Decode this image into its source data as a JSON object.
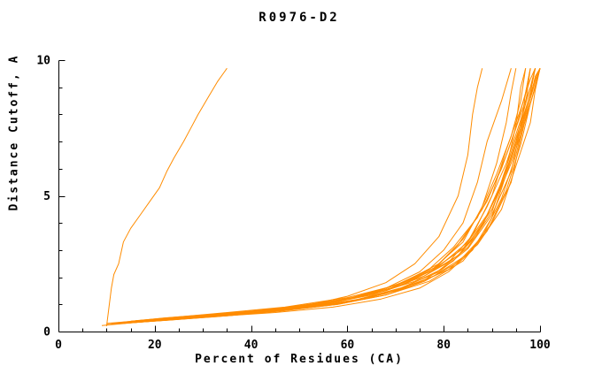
{
  "chart_data": {
    "type": "line",
    "title": "R0976-D2",
    "xlabel": "Percent of Residues (CA)",
    "ylabel": "Distance Cutoff, A",
    "xlim": [
      0,
      100
    ],
    "ylim": [
      0,
      10
    ],
    "x_major_ticks": [
      0,
      20,
      40,
      60,
      80,
      100
    ],
    "x_minor_step": 5,
    "y_major_ticks": [
      0,
      5,
      10
    ],
    "y_minor_step": 1,
    "grid": false,
    "legend": "none",
    "line_color": "#ff8c00",
    "axis_color": "#000000",
    "series": [
      {
        "points": [
          [
            10,
            0.2
          ],
          [
            10.5,
            0.9
          ],
          [
            11,
            1.6
          ],
          [
            11.5,
            2.1
          ],
          [
            12.5,
            2.5
          ],
          [
            13,
            2.9
          ],
          [
            13.5,
            3.3
          ],
          [
            15,
            3.8
          ],
          [
            17,
            4.3
          ],
          [
            19,
            4.8
          ],
          [
            21,
            5.3
          ],
          [
            22.5,
            5.9
          ],
          [
            24,
            6.4
          ],
          [
            26,
            7.0
          ],
          [
            27.5,
            7.5
          ],
          [
            29,
            8.0
          ],
          [
            31,
            8.6
          ],
          [
            33,
            9.2
          ],
          [
            35,
            9.7
          ]
        ]
      },
      {
        "points": [
          [
            10,
            0.3
          ],
          [
            20,
            0.45
          ],
          [
            30,
            0.6
          ],
          [
            40,
            0.75
          ],
          [
            50,
            0.95
          ],
          [
            60,
            1.2
          ],
          [
            68,
            1.6
          ],
          [
            75,
            2.2
          ],
          [
            80,
            3.0
          ],
          [
            84,
            4.0
          ],
          [
            87,
            5.5
          ],
          [
            89,
            7.0
          ],
          [
            92,
            8.5
          ],
          [
            94,
            9.7
          ]
        ]
      },
      {
        "points": [
          [
            12,
            0.3
          ],
          [
            25,
            0.5
          ],
          [
            38,
            0.7
          ],
          [
            50,
            0.9
          ],
          [
            60,
            1.3
          ],
          [
            68,
            1.8
          ],
          [
            74,
            2.5
          ],
          [
            79,
            3.5
          ],
          [
            83,
            5.0
          ],
          [
            85,
            6.5
          ],
          [
            86,
            8.0
          ],
          [
            87,
            9.0
          ],
          [
            88,
            9.7
          ]
        ]
      },
      {
        "points": [
          [
            11,
            0.3
          ],
          [
            22,
            0.5
          ],
          [
            33,
            0.65
          ],
          [
            44,
            0.8
          ],
          [
            54,
            1.0
          ],
          [
            63,
            1.3
          ],
          [
            71,
            1.7
          ],
          [
            78,
            2.3
          ],
          [
            83,
            3.2
          ],
          [
            88,
            4.5
          ],
          [
            92,
            6.0
          ],
          [
            95,
            7.5
          ],
          [
            97,
            8.8
          ],
          [
            98,
            9.7
          ]
        ]
      },
      {
        "points": [
          [
            13,
            0.3
          ],
          [
            26,
            0.5
          ],
          [
            39,
            0.7
          ],
          [
            51,
            0.95
          ],
          [
            61,
            1.25
          ],
          [
            70,
            1.7
          ],
          [
            77,
            2.3
          ],
          [
            82,
            3.1
          ],
          [
            87,
            4.2
          ],
          [
            91,
            5.8
          ],
          [
            94,
            7.2
          ],
          [
            96,
            8.5
          ],
          [
            97,
            9.7
          ]
        ]
      },
      {
        "points": [
          [
            10,
            0.25
          ],
          [
            20,
            0.4
          ],
          [
            32,
            0.55
          ],
          [
            45,
            0.7
          ],
          [
            57,
            0.9
          ],
          [
            67,
            1.2
          ],
          [
            75,
            1.6
          ],
          [
            81,
            2.2
          ],
          [
            86,
            3.0
          ],
          [
            90,
            4.2
          ],
          [
            93,
            5.8
          ],
          [
            96,
            7.4
          ],
          [
            98,
            8.8
          ],
          [
            99,
            9.7
          ]
        ]
      },
      {
        "points": [
          [
            14,
            0.35
          ],
          [
            28,
            0.55
          ],
          [
            42,
            0.75
          ],
          [
            54,
            1.0
          ],
          [
            64,
            1.35
          ],
          [
            72,
            1.85
          ],
          [
            79,
            2.5
          ],
          [
            84,
            3.4
          ],
          [
            89,
            4.8
          ],
          [
            93,
            6.5
          ],
          [
            96,
            8.0
          ],
          [
            98,
            9.0
          ],
          [
            99,
            9.7
          ]
        ]
      },
      {
        "points": [
          [
            12,
            0.3
          ],
          [
            24,
            0.45
          ],
          [
            36,
            0.6
          ],
          [
            48,
            0.8
          ],
          [
            59,
            1.05
          ],
          [
            68,
            1.4
          ],
          [
            76,
            1.9
          ],
          [
            82,
            2.6
          ],
          [
            87,
            3.6
          ],
          [
            91,
            5.0
          ],
          [
            94,
            6.6
          ],
          [
            97,
            8.2
          ],
          [
            99,
            9.3
          ],
          [
            100,
            9.7
          ]
        ]
      },
      {
        "points": [
          [
            15,
            0.35
          ],
          [
            30,
            0.55
          ],
          [
            45,
            0.8
          ],
          [
            58,
            1.1
          ],
          [
            68,
            1.5
          ],
          [
            76,
            2.05
          ],
          [
            83,
            2.8
          ],
          [
            88,
            3.9
          ],
          [
            92,
            5.4
          ],
          [
            95,
            7.0
          ],
          [
            97,
            8.4
          ],
          [
            98,
            9.7
          ]
        ]
      },
      {
        "points": [
          [
            11,
            0.28
          ],
          [
            23,
            0.42
          ],
          [
            35,
            0.58
          ],
          [
            47,
            0.78
          ],
          [
            58,
            1.0
          ],
          [
            68,
            1.35
          ],
          [
            76,
            1.85
          ],
          [
            83,
            2.55
          ],
          [
            88,
            3.5
          ],
          [
            92,
            4.9
          ],
          [
            95,
            6.5
          ],
          [
            97,
            8.0
          ],
          [
            99,
            9.2
          ],
          [
            100,
            9.7
          ]
        ]
      },
      {
        "points": [
          [
            16,
            0.4
          ],
          [
            32,
            0.65
          ],
          [
            47,
            0.9
          ],
          [
            60,
            1.25
          ],
          [
            70,
            1.7
          ],
          [
            78,
            2.3
          ],
          [
            85,
            3.2
          ],
          [
            90,
            4.5
          ],
          [
            94,
            6.2
          ],
          [
            97,
            7.8
          ],
          [
            99,
            9.0
          ],
          [
            100,
            9.7
          ]
        ]
      },
      {
        "points": [
          [
            10,
            0.25
          ],
          [
            18,
            0.38
          ],
          [
            28,
            0.5
          ],
          [
            40,
            0.68
          ],
          [
            52,
            0.9
          ],
          [
            63,
            1.2
          ],
          [
            72,
            1.65
          ],
          [
            79,
            2.25
          ],
          [
            85,
            3.1
          ],
          [
            90,
            4.4
          ],
          [
            93,
            6.0
          ],
          [
            95,
            7.6
          ],
          [
            96,
            9.0
          ],
          [
            97,
            9.7
          ]
        ]
      },
      {
        "points": [
          [
            13,
            0.32
          ],
          [
            27,
            0.5
          ],
          [
            41,
            0.7
          ],
          [
            53,
            0.95
          ],
          [
            63,
            1.3
          ],
          [
            72,
            1.75
          ],
          [
            79,
            2.4
          ],
          [
            85,
            3.3
          ],
          [
            89,
            4.6
          ],
          [
            93,
            6.2
          ],
          [
            96,
            7.8
          ],
          [
            98,
            9.0
          ],
          [
            99,
            9.7
          ]
        ]
      },
      {
        "points": [
          [
            12,
            0.3
          ],
          [
            25,
            0.48
          ],
          [
            38,
            0.68
          ],
          [
            50,
            0.92
          ],
          [
            61,
            1.25
          ],
          [
            70,
            1.7
          ],
          [
            78,
            2.35
          ],
          [
            84,
            3.3
          ],
          [
            88,
            4.6
          ],
          [
            91,
            6.2
          ],
          [
            93,
            7.7
          ],
          [
            94,
            8.8
          ],
          [
            95,
            9.7
          ]
        ]
      },
      {
        "points": [
          [
            14,
            0.33
          ],
          [
            29,
            0.52
          ],
          [
            43,
            0.73
          ],
          [
            55,
            1.0
          ],
          [
            65,
            1.35
          ],
          [
            74,
            1.85
          ],
          [
            81,
            2.55
          ],
          [
            86,
            3.55
          ],
          [
            90,
            5.0
          ],
          [
            93,
            6.7
          ],
          [
            96,
            8.2
          ],
          [
            98,
            9.3
          ],
          [
            99,
            9.7
          ]
        ]
      },
      {
        "points": [
          [
            11,
            0.27
          ],
          [
            21,
            0.4
          ],
          [
            33,
            0.55
          ],
          [
            46,
            0.75
          ],
          [
            58,
            1.0
          ],
          [
            68,
            1.35
          ],
          [
            77,
            1.85
          ],
          [
            84,
            2.6
          ],
          [
            89,
            3.7
          ],
          [
            93,
            5.2
          ],
          [
            96,
            6.9
          ],
          [
            98,
            8.4
          ],
          [
            100,
            9.7
          ]
        ]
      },
      {
        "points": [
          [
            15,
            0.38
          ],
          [
            31,
            0.6
          ],
          [
            46,
            0.85
          ],
          [
            59,
            1.15
          ],
          [
            69,
            1.6
          ],
          [
            77,
            2.2
          ],
          [
            84,
            3.05
          ],
          [
            89,
            4.3
          ],
          [
            93,
            5.9
          ],
          [
            96,
            7.5
          ],
          [
            98,
            8.8
          ],
          [
            99,
            9.7
          ]
        ]
      },
      {
        "points": [
          [
            9,
            0.22
          ],
          [
            17,
            0.35
          ],
          [
            27,
            0.48
          ],
          [
            39,
            0.65
          ],
          [
            51,
            0.88
          ],
          [
            62,
            1.18
          ],
          [
            71,
            1.6
          ],
          [
            79,
            2.2
          ],
          [
            85,
            3.05
          ],
          [
            90,
            4.3
          ],
          [
            94,
            5.9
          ],
          [
            96,
            7.5
          ],
          [
            97,
            8.8
          ],
          [
            98,
            9.7
          ]
        ]
      },
      {
        "points": [
          [
            13,
            0.3
          ],
          [
            26,
            0.47
          ],
          [
            40,
            0.66
          ],
          [
            53,
            0.9
          ],
          [
            64,
            1.22
          ],
          [
            73,
            1.66
          ],
          [
            81,
            2.28
          ],
          [
            87,
            3.2
          ],
          [
            92,
            4.5
          ],
          [
            95,
            6.1
          ],
          [
            98,
            7.7
          ],
          [
            99,
            8.9
          ],
          [
            100,
            9.7
          ]
        ]
      },
      {
        "points": [
          [
            12,
            0.28
          ],
          [
            24,
            0.44
          ],
          [
            37,
            0.62
          ],
          [
            49,
            0.84
          ],
          [
            60,
            1.1
          ],
          [
            70,
            1.5
          ],
          [
            78,
            2.05
          ],
          [
            85,
            2.85
          ],
          [
            90,
            4.0
          ],
          [
            94,
            5.5
          ],
          [
            96,
            7.1
          ],
          [
            98,
            8.6
          ],
          [
            99,
            9.4
          ],
          [
            100,
            9.7
          ]
        ]
      }
    ]
  }
}
